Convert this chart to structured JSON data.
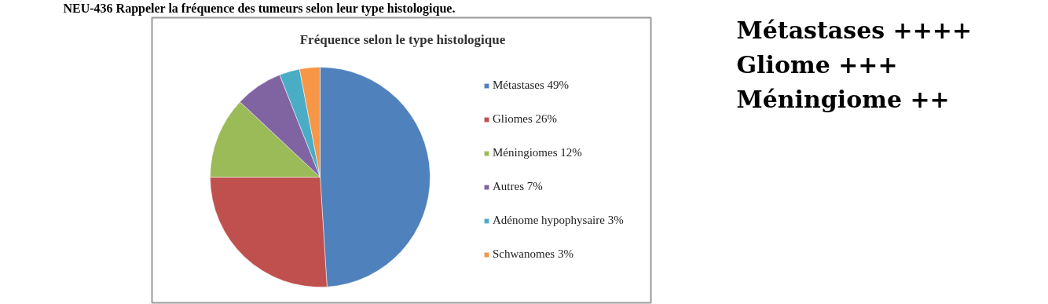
{
  "chart_data": {
    "type": "pie",
    "title": "Fréquence selon le type histologique",
    "categories": [
      "Métastases 49%",
      "Gliomes 26%",
      "Méningiomes 12%",
      "Autres 7%",
      "Adénome hypophysaire 3%",
      "Schwanomes 3%"
    ],
    "values": [
      49,
      26,
      12,
      7,
      3,
      3
    ],
    "colors": [
      "#4f81bd",
      "#c0504d",
      "#9bbb59",
      "#8064a2",
      "#4bacc6",
      "#f79646"
    ],
    "legend": "right",
    "annotations": [
      "NEU-436 Rappeler la fréquence des tumeurs selon leur type histologique.",
      "Métastases ++++",
      "Gliome +++",
      "Méningiome ++"
    ]
  }
}
